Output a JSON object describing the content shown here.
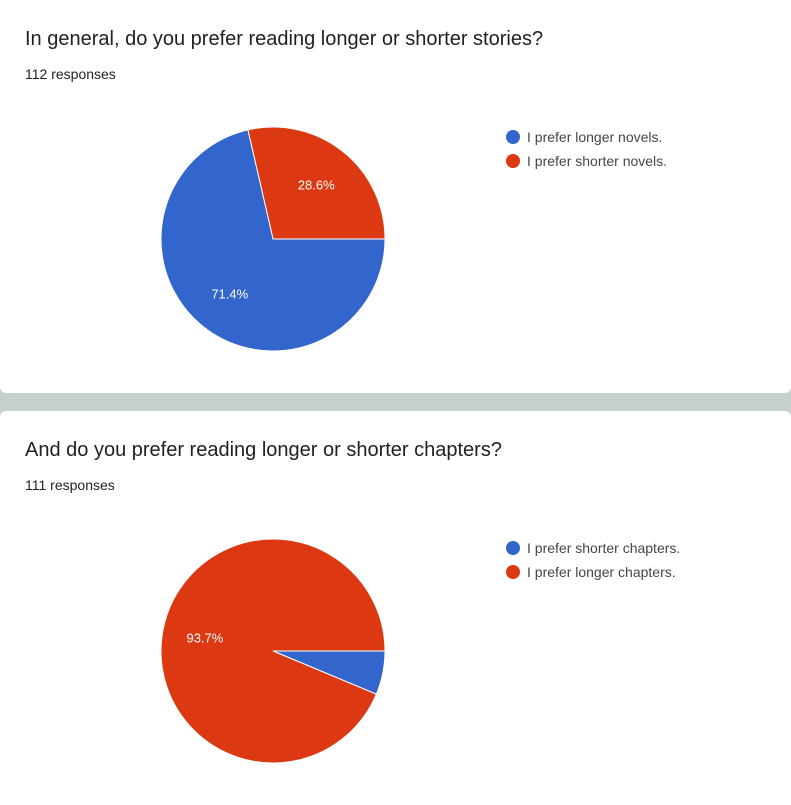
{
  "colors": {
    "blue": "#3366cc",
    "red": "#dc3912"
  },
  "cards": [
    {
      "title": "In general, do you prefer reading longer or shorter stories?",
      "responses": "112 responses",
      "chart_data": {
        "type": "pie",
        "slices": [
          {
            "label": "I prefer longer novels.",
            "value": 71.4,
            "display": "71.4%",
            "color": "#3366cc"
          },
          {
            "label": "I prefer shorter novels.",
            "value": 28.6,
            "display": "28.6%",
            "color": "#dc3912"
          }
        ]
      }
    },
    {
      "title": "And do you prefer reading longer or shorter chapters?",
      "responses": "111 responses",
      "chart_data": {
        "type": "pie",
        "slices": [
          {
            "label": "I prefer shorter chapters.",
            "value": 6.3,
            "display": "",
            "color": "#3366cc"
          },
          {
            "label": "I prefer longer chapters.",
            "value": 93.7,
            "display": "93.7%",
            "color": "#dc3912"
          }
        ]
      }
    }
  ]
}
